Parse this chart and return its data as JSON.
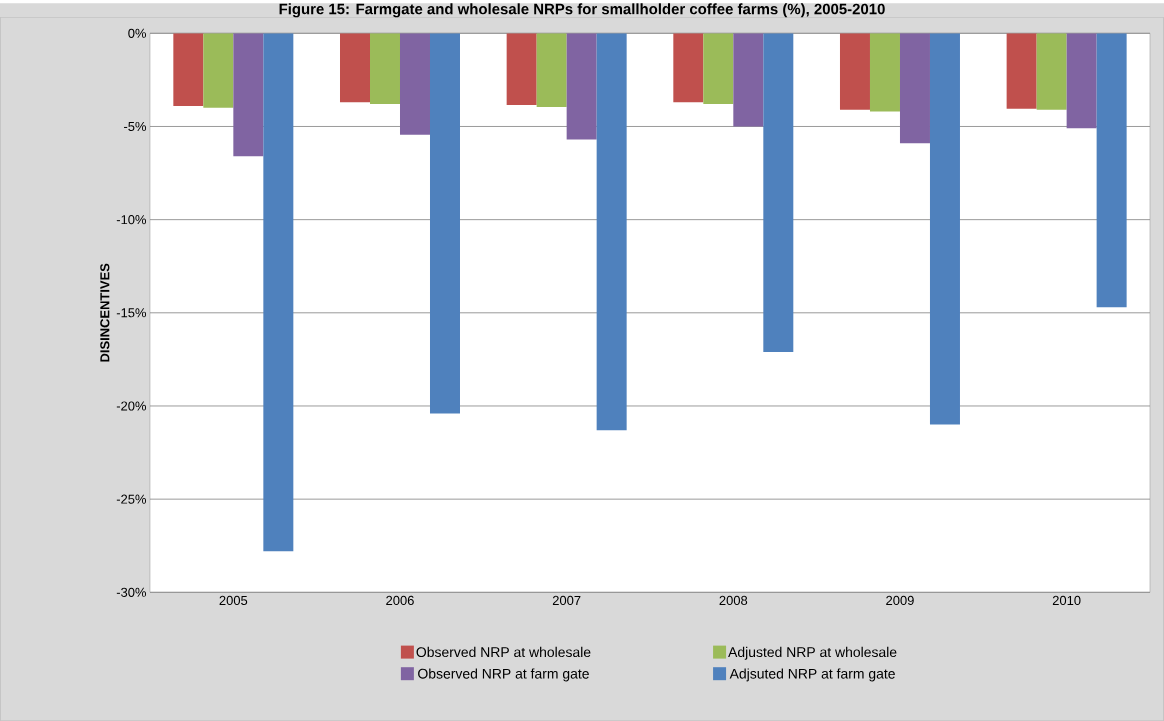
{
  "chart_data": {
    "type": "bar",
    "title": "Figure 15: Farmgate and wholesale NRPs for smallholder coffee farms (%), 2005-2010",
    "ylabel": "DISINCENTIVES",
    "categories": [
      "2005",
      "2006",
      "2007",
      "2008",
      "2009",
      "2010"
    ],
    "series": [
      {
        "name": "Observed NRP at wholesale",
        "color": "#c0504d",
        "values": [
          -3.9,
          -3.7,
          -3.85,
          -3.7,
          -4.1,
          -4.05
        ]
      },
      {
        "name": "Adjusted NRP at wholesale",
        "color": "#9bbb59",
        "values": [
          -4.0,
          -3.8,
          -3.95,
          -3.8,
          -4.2,
          -4.1
        ]
      },
      {
        "name": "Observed NRP at farm gate",
        "color": "#8064a2",
        "values": [
          -6.6,
          -5.45,
          -5.7,
          -5.0,
          -5.9,
          -5.1
        ]
      },
      {
        "name": "Adjsuted NRP at farm gate",
        "color": "#4f81bd",
        "values": [
          -27.8,
          -20.4,
          -21.3,
          -17.1,
          -21.0,
          -14.7
        ]
      }
    ],
    "ylim": [
      -30,
      0
    ],
    "yticks": [
      {
        "value": -30,
        "label": "-30%"
      },
      {
        "value": -25,
        "label": "-25%"
      },
      {
        "value": -20,
        "label": "-20%"
      },
      {
        "value": -15,
        "label": "-15%"
      },
      {
        "value": -10,
        "label": "-10%"
      },
      {
        "value": -5,
        "label": "-5%"
      },
      {
        "value": 0,
        "label": "0%"
      }
    ],
    "grid": "y",
    "legend": "bottom"
  }
}
